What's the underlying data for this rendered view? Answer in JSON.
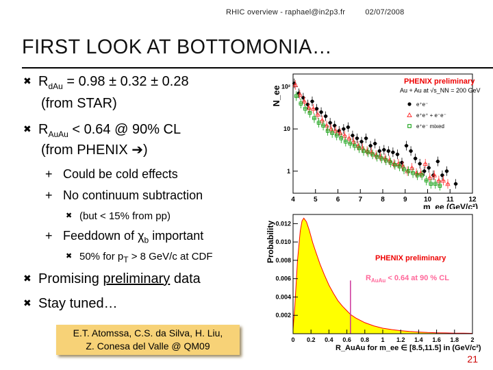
{
  "header": {
    "left": "RHIC overview - raphael@in2p3.fr",
    "date": "02/07/2008"
  },
  "title": "FIRST LOOK AT BOTTOMONIA…",
  "bullets": {
    "b1": {
      "r": "R",
      "sub": "dAu",
      "text": " = 0.98 ± 0.32 ± 0.28",
      "line2": "(from STAR)"
    },
    "b2": {
      "r": "R",
      "sub": "AuAu",
      "text": " < 0.64 @ 90% CL",
      "line2": "(from PHENIX ➔)"
    },
    "s1": "Could be cold effects",
    "s2": "No continuum subtraction",
    "s2a": "(but < 15% from pp)",
    "s3": {
      "text": "Feeddown of χ",
      "sub": "b",
      "after": " important"
    },
    "s3a": {
      "text": "50% for p",
      "sub": "T",
      "after": " > 8 GeV/c at CDF"
    },
    "b3": {
      "text": "Promising ",
      "u": "preliminary",
      "after": " data"
    },
    "b4": "Stay tuned…"
  },
  "citation": {
    "line1": "E.T. Atomssa, C.S. da Silva,  H. Liu,",
    "line2": "Z. Conesa del Valle @ QM09"
  },
  "page_number": "21",
  "colors": {
    "title": "#111111",
    "pdf_fill": "#ffff00",
    "pdf_line": "#ff0000",
    "cite_bg": "#f7d277",
    "page_number": "#cc0000",
    "limit_line": "#cc3399"
  },
  "chart_data": [
    {
      "type": "scatter",
      "title": "PHENIX preliminary",
      "subtitle": "Au + Au  at  √s_NN = 200 GeV",
      "xlabel": "m_ee (GeV/c²)",
      "ylabel": "N_ee",
      "xlim": [
        4,
        12
      ],
      "ylim": [
        0.3,
        200
      ],
      "yscale": "log",
      "x_ticks": [
        4,
        5,
        6,
        7,
        8,
        9,
        10,
        11,
        12
      ],
      "y_ticks": [
        {
          "v": 1,
          "label": "1"
        },
        {
          "v": 10,
          "label": "10"
        },
        {
          "v": 100,
          "label": "10²"
        }
      ],
      "legend": [
        "e⁺e⁻",
        "e⁺e⁺ + e⁻e⁻",
        "e⁺e⁻ mixed"
      ],
      "series": [
        {
          "name": "e⁺e⁻",
          "color": "#000000",
          "marker": "filled-circle",
          "x": [
            4.1,
            4.3,
            4.5,
            4.7,
            4.9,
            5.1,
            5.3,
            5.5,
            5.7,
            5.9,
            6.1,
            6.3,
            6.5,
            6.7,
            6.9,
            7.1,
            7.3,
            7.5,
            7.7,
            7.9,
            8.1,
            8.3,
            8.5,
            8.7,
            8.9,
            9.1,
            9.3,
            9.5,
            9.7,
            9.9,
            10.1,
            10.3,
            10.5,
            10.7,
            10.9,
            11.3
          ],
          "y": [
            120,
            70,
            55,
            38,
            45,
            30,
            25,
            20,
            14,
            12,
            9,
            10,
            11,
            7,
            6,
            5,
            6,
            4,
            4.5,
            3,
            3.2,
            3,
            2.8,
            2.5,
            1.6,
            4,
            3,
            2,
            1.5,
            1,
            1.2,
            0.8,
            1.7,
            0.8,
            1,
            0.5
          ]
        },
        {
          "name": "e⁺e⁺ + e⁻e⁻",
          "color": "#ff3333",
          "marker": "open-triangle",
          "x": [
            4.1,
            4.3,
            4.5,
            4.7,
            4.9,
            5.1,
            5.3,
            5.5,
            5.7,
            5.9,
            6.1,
            6.3,
            6.5,
            6.7,
            6.9,
            7.1,
            7.3,
            7.5,
            7.7,
            7.9,
            8.1,
            8.3,
            8.5,
            8.7,
            8.9,
            9.1,
            9.3,
            9.5,
            9.7,
            9.9,
            10.1,
            10.3,
            10.5,
            10.7,
            10.9
          ],
          "y": [
            110,
            65,
            45,
            32,
            30,
            22,
            16,
            12,
            10,
            9,
            8,
            7,
            6,
            5,
            4,
            3.5,
            3,
            2.8,
            2.4,
            2.2,
            2,
            1.8,
            1.5,
            1.5,
            1.3,
            1,
            1.2,
            0.9,
            0.9,
            1.5,
            0.7,
            0.8,
            0.6,
            0.6,
            0.5
          ]
        },
        {
          "name": "e⁺e⁻ mixed",
          "color": "#009900",
          "marker": "open-square",
          "x": [
            4.1,
            4.3,
            4.5,
            4.7,
            4.9,
            5.1,
            5.3,
            5.5,
            5.7,
            5.9,
            6.1,
            6.3,
            6.5,
            6.7,
            6.9,
            7.1,
            7.3,
            7.5,
            7.7,
            7.9,
            8.1,
            8.3,
            8.5,
            8.7,
            8.9,
            9.1,
            9.3,
            9.5,
            9.7,
            9.9,
            10.1,
            10.3,
            10.5
          ],
          "y": [
            60,
            40,
            30,
            24,
            18,
            14,
            12,
            9,
            8,
            7,
            6,
            5,
            4.5,
            4,
            3.5,
            3,
            2.8,
            2.5,
            2.2,
            2,
            1.8,
            1.6,
            1.4,
            1.3,
            1.1,
            1,
            0.9,
            0.8,
            0.8,
            0.6,
            0.5,
            0.5,
            0.45
          ]
        }
      ]
    },
    {
      "type": "area",
      "title": "PHENIX preliminary",
      "annotation": {
        "r": "R",
        "sub": "AuAu",
        "text": " < 0.64 at 90 % CL"
      },
      "xlabel": "R_AuAu for m_ee ∈ [8.5,11.5] in (GeV/c²)",
      "ylabel": "Probability",
      "xlim": [
        0,
        2
      ],
      "ylim": [
        0,
        0.013
      ],
      "x_ticks": [
        0,
        0.2,
        0.4,
        0.6,
        0.8,
        1,
        1.2,
        1.4,
        1.6,
        1.8,
        2
      ],
      "y_ticks": [
        0.002,
        0.004,
        0.006,
        0.008,
        0.01,
        0.012
      ],
      "limit_x": 0.64,
      "x": [
        0,
        0.02,
        0.05,
        0.08,
        0.1,
        0.12,
        0.15,
        0.18,
        0.2,
        0.22,
        0.25,
        0.3,
        0.35,
        0.4,
        0.45,
        0.5,
        0.55,
        0.6,
        0.64,
        0.7,
        0.8,
        0.9,
        1,
        1.1,
        1.2,
        1.3,
        1.4,
        1.5,
        1.6,
        1.7,
        1.8,
        1.9,
        2
      ],
      "y": [
        0.0005,
        0.003,
        0.008,
        0.0112,
        0.0123,
        0.0126,
        0.0122,
        0.0113,
        0.0106,
        0.0099,
        0.009,
        0.0076,
        0.0064,
        0.0053,
        0.0044,
        0.0036,
        0.003,
        0.0025,
        0.0021,
        0.0017,
        0.0012,
        0.00085,
        0.0006,
        0.00045,
        0.00033,
        0.00024,
        0.00018,
        0.00013,
        0.0001,
        8e-05,
        6e-05,
        5e-05,
        4e-05
      ]
    }
  ]
}
